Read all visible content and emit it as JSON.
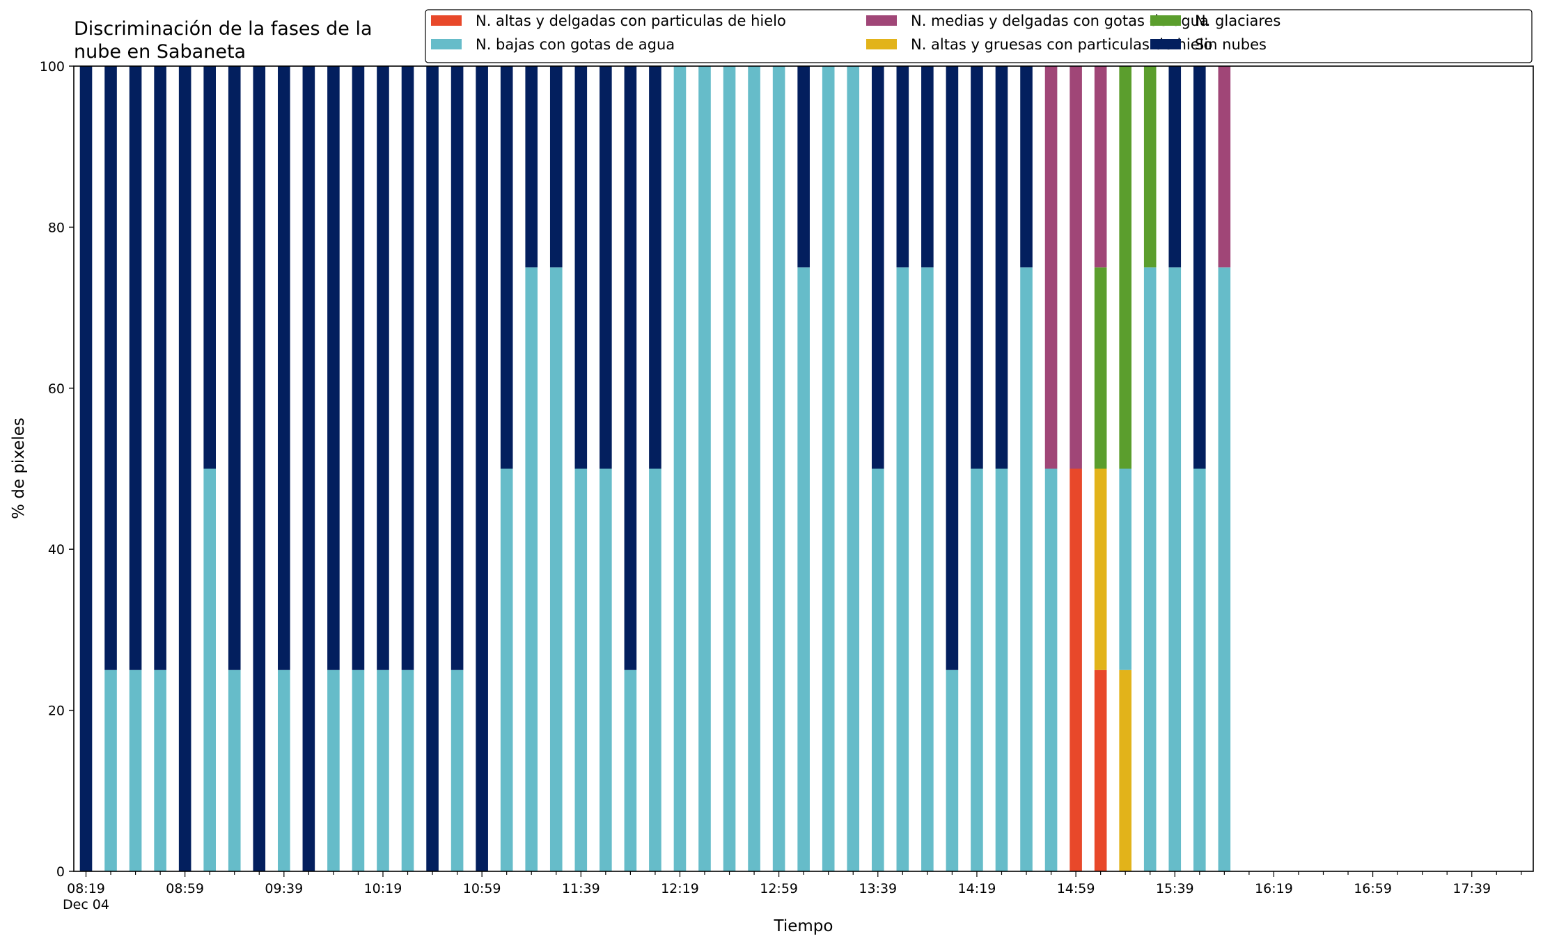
{
  "chart_data": {
    "type": "bar",
    "stacked": true,
    "title": "Discriminación de la fases de la\nnube en Sabaneta",
    "xlabel": "Tiempo",
    "ylabel": "% de pixeles",
    "ylim": [
      0,
      100
    ],
    "yticks": [
      0,
      20,
      40,
      60,
      80,
      100
    ],
    "legend_position": "top-right",
    "grid": false,
    "x_start_time": "08:19",
    "x_date_label": "Dec 04",
    "x_step_minutes": 10,
    "xtick_labels": [
      "08:19",
      "08:59",
      "09:39",
      "10:19",
      "10:59",
      "11:39",
      "12:19",
      "12:59",
      "13:39",
      "14:19",
      "14:59",
      "15:39",
      "16:19",
      "16:59",
      "17:39"
    ],
    "x": [
      "08:19",
      "08:29",
      "08:39",
      "08:49",
      "08:59",
      "09:09",
      "09:19",
      "09:29",
      "09:39",
      "09:49",
      "09:59",
      "10:09",
      "10:19",
      "10:29",
      "10:39",
      "10:49",
      "10:59",
      "11:09",
      "11:19",
      "11:29",
      "11:39",
      "11:49",
      "11:59",
      "12:09",
      "12:19",
      "12:29",
      "12:39",
      "12:49",
      "12:59",
      "13:09",
      "13:19",
      "13:29",
      "13:39",
      "13:49",
      "13:59",
      "14:09",
      "14:19",
      "14:29",
      "14:39",
      "14:49",
      "14:59",
      "15:09",
      "15:19",
      "15:29",
      "15:39",
      "15:49",
      "15:59",
      "16:09"
    ],
    "series": [
      {
        "name": "N. altas y delgadas con particulas de hielo",
        "color": "#e8482a",
        "values": [
          0,
          0,
          0,
          0,
          0,
          0,
          0,
          0,
          0,
          0,
          0,
          0,
          0,
          0,
          0,
          0,
          0,
          0,
          0,
          0,
          0,
          0,
          0,
          0,
          0,
          0,
          0,
          0,
          0,
          0,
          0,
          0,
          0,
          0,
          0,
          0,
          0,
          0,
          0,
          0,
          50,
          25,
          0,
          0,
          0,
          0,
          0,
          0
        ]
      },
      {
        "name": "N. altas y gruesas con particulas de hielo",
        "color": "#e2b31a",
        "values": [
          0,
          0,
          0,
          0,
          0,
          0,
          0,
          0,
          0,
          0,
          0,
          0,
          0,
          0,
          0,
          0,
          0,
          0,
          0,
          0,
          0,
          0,
          0,
          0,
          0,
          0,
          0,
          0,
          0,
          0,
          0,
          0,
          0,
          0,
          0,
          0,
          0,
          0,
          0,
          0,
          0,
          25,
          25,
          0,
          0,
          0,
          0,
          0
        ]
      },
      {
        "name": "N. bajas con gotas de agua",
        "color": "#66bcc9",
        "values": [
          0,
          25,
          25,
          25,
          0,
          50,
          25,
          0,
          25,
          0,
          25,
          25,
          25,
          25,
          0,
          25,
          0,
          50,
          75,
          75,
          50,
          50,
          25,
          50,
          100,
          100,
          100,
          100,
          100,
          75,
          100,
          100,
          50,
          75,
          75,
          25,
          50,
          50,
          75,
          50,
          0,
          0,
          25,
          75,
          75,
          50,
          75,
          0
        ]
      },
      {
        "name": "N. glaciares",
        "color": "#5b9e2d",
        "values": [
          0,
          0,
          0,
          0,
          0,
          0,
          0,
          0,
          0,
          0,
          0,
          0,
          0,
          0,
          0,
          0,
          0,
          0,
          0,
          0,
          0,
          0,
          0,
          0,
          0,
          0,
          0,
          0,
          0,
          0,
          0,
          0,
          0,
          0,
          0,
          0,
          0,
          0,
          0,
          0,
          0,
          25,
          50,
          25,
          0,
          0,
          0,
          0
        ]
      },
      {
        "name": "N. medias y delgadas con gotas de agua",
        "color": "#a04677",
        "values": [
          0,
          0,
          0,
          0,
          0,
          0,
          0,
          0,
          0,
          0,
          0,
          0,
          0,
          0,
          0,
          0,
          0,
          0,
          0,
          0,
          0,
          0,
          0,
          0,
          0,
          0,
          0,
          0,
          0,
          0,
          0,
          0,
          0,
          0,
          0,
          0,
          0,
          0,
          0,
          50,
          50,
          25,
          0,
          0,
          0,
          0,
          25,
          0
        ]
      },
      {
        "name": "Sin nubes",
        "color": "#031f5e",
        "values": [
          100,
          75,
          75,
          75,
          100,
          50,
          75,
          100,
          75,
          100,
          75,
          75,
          75,
          75,
          100,
          75,
          100,
          50,
          25,
          25,
          50,
          50,
          75,
          50,
          0,
          0,
          0,
          0,
          0,
          25,
          0,
          0,
          50,
          25,
          25,
          75,
          50,
          50,
          25,
          0,
          0,
          0,
          0,
          0,
          25,
          50,
          0,
          0
        ]
      }
    ],
    "legend_order": [
      0,
      2,
      4,
      1,
      3,
      5
    ]
  }
}
